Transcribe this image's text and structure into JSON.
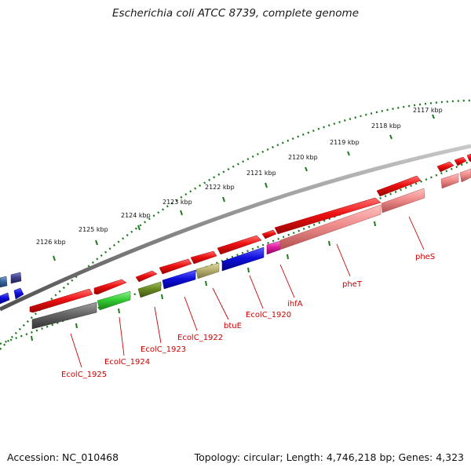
{
  "title": "Escherichia coli ATCC 8739, complete genome",
  "footer": {
    "accession": "Accession: NC_010468",
    "summary": "Topology: circular; Length: 4,746,218 bp; Genes: 4,323"
  },
  "scale_labels": [
    "2117 kbp",
    "2118 kbp",
    "2119 kbp",
    "2120 kbp",
    "2121 kbp",
    "2122 kbp",
    "2123 kbp",
    "2124 kbp",
    "2125 kbp",
    "2126 kbp"
  ],
  "gene_labels": [
    "pheS",
    "pheT",
    "ihfA",
    "EcolC_1920",
    "btuE",
    "EcolC_1922",
    "EcolC_1923",
    "EcolC_1924",
    "EcolC_1925"
  ],
  "colors": {
    "backbone": "#8a8a8a",
    "tick": "#1e7a1e",
    "gene_red": "#ee1111",
    "label_red": "#cc0000",
    "light_red": "#f08c8c",
    "blue": "#1010dd",
    "green": "#33cc33",
    "olive": "#6b8a22",
    "khaki": "#b8b070",
    "magenta": "#e020a0",
    "dark_gray": "#666666"
  }
}
